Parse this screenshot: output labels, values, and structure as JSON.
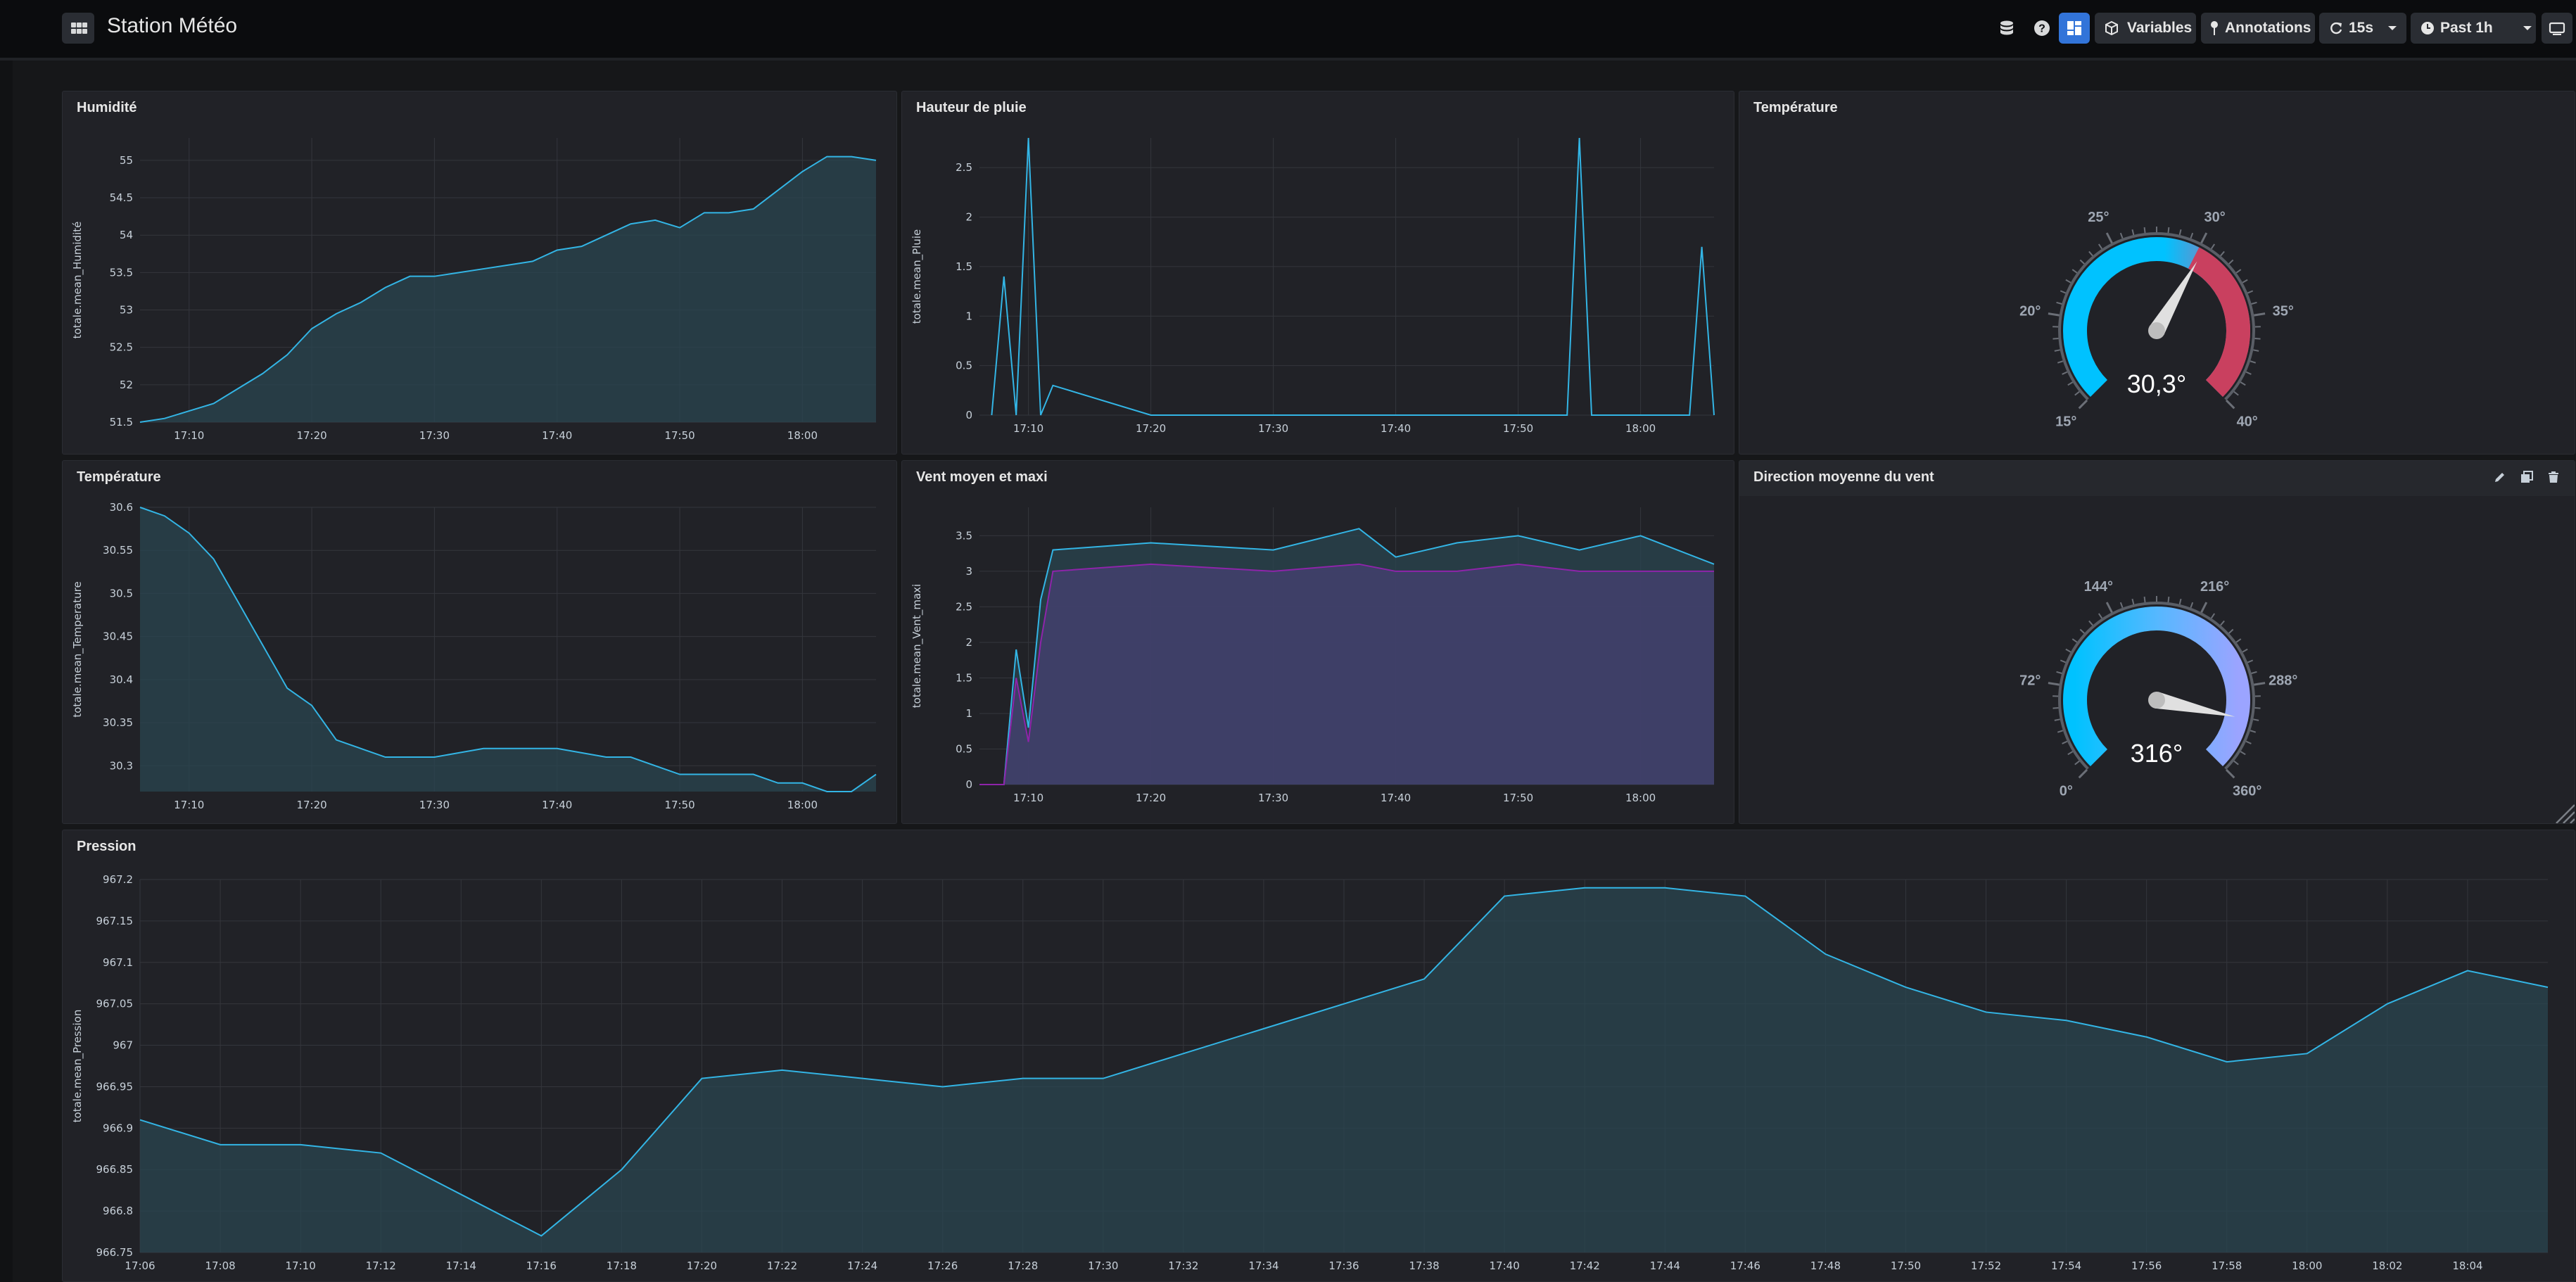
{
  "header": {
    "title": "Station Météo",
    "variables_label": "Variables",
    "annotations_label": "Annotations",
    "refresh_label": "15s",
    "time_range_label": "Past 1h"
  },
  "colors": {
    "background": "#161719",
    "panel": "#212227",
    "line": "#33b5e5",
    "fill": "#2a4550",
    "purple_fill": "#433f6d",
    "purple_line": "#8e24aa",
    "gauge_blue": "#00c2ff",
    "gauge_red": "#c9405f",
    "gauge_lavender": "#9ba4ff",
    "button_active": "#3274d9"
  },
  "icons": {
    "dashboard": "grid-icon",
    "datasource": "database-icon",
    "help": "help-icon",
    "variables": "cube-icon",
    "annotations": "pin-icon",
    "refresh": "refresh-icon",
    "time": "clock-icon",
    "kiosk": "tv-icon"
  },
  "panels": {
    "humidity": {
      "title": "Humidité",
      "ylabel": "totale.mean_Humidité",
      "yticks": [
        "55",
        "54.5",
        "54",
        "53.5",
        "53",
        "52.5",
        "52",
        "51.5"
      ],
      "xticks": [
        "17:10",
        "17:20",
        "17:30",
        "17:40",
        "17:50",
        "18:00"
      ]
    },
    "rain": {
      "title": "Hauteur de pluie",
      "ylabel": "totale.mean_Pluie",
      "yticks": [
        "2.5",
        "2",
        "1.5",
        "1",
        "0.5",
        "0"
      ],
      "xticks": [
        "17:10",
        "17:20",
        "17:30",
        "17:40",
        "17:50",
        "18:00"
      ]
    },
    "temp_gauge": {
      "title": "Température",
      "value": "30,3°",
      "min": 15,
      "max": 40,
      "current": 30.3,
      "threshold": 30,
      "labels": [
        "15°",
        "20°",
        "25°",
        "30°",
        "35°",
        "40°"
      ]
    },
    "temperature": {
      "title": "Température",
      "ylabel": "totale.mean_Temperature",
      "yticks": [
        "30.6",
        "30.55",
        "30.5",
        "30.45",
        "30.4",
        "30.35",
        "30.3"
      ],
      "xticks": [
        "17:10",
        "17:20",
        "17:30",
        "17:40",
        "17:50",
        "18:00"
      ]
    },
    "wind": {
      "title": "Vent moyen et maxi",
      "ylabel": "totale.mean_Vent_maxi",
      "yticks": [
        "3.5",
        "3",
        "2.5",
        "2",
        "1.5",
        "1",
        "0.5",
        "0"
      ],
      "xticks": [
        "17:10",
        "17:20",
        "17:30",
        "17:40",
        "17:50",
        "18:00"
      ]
    },
    "wind_dir": {
      "title": "Direction moyenne du vent",
      "value": "316°",
      "min": 0,
      "max": 360,
      "current": 316,
      "labels": [
        "0°",
        "72°",
        "144°",
        "216°",
        "288°",
        "360°"
      ]
    },
    "pressure": {
      "title": "Pression",
      "ylabel": "totale.mean_Pression",
      "yticks": [
        "967.2",
        "967.15",
        "967.1",
        "967.05",
        "967",
        "966.95",
        "966.9",
        "966.85",
        "966.8",
        "966.75"
      ],
      "xticks": [
        "17:06",
        "17:08",
        "17:10",
        "17:12",
        "17:14",
        "17:16",
        "17:18",
        "17:20",
        "17:22",
        "17:24",
        "17:26",
        "17:28",
        "17:30",
        "17:32",
        "17:34",
        "17:36",
        "17:38",
        "17:40",
        "17:42",
        "17:44",
        "17:46",
        "17:48",
        "17:50",
        "17:52",
        "17:54",
        "17:56",
        "17:58",
        "18:00",
        "18:02",
        "18:04"
      ]
    }
  },
  "chart_data": [
    {
      "type": "area",
      "title": "Humidité",
      "ylabel": "totale.mean_Humidité",
      "ylim": [
        51.5,
        55.3
      ],
      "x": [
        "17:06",
        "17:08",
        "17:10",
        "17:12",
        "17:14",
        "17:16",
        "17:18",
        "17:20",
        "17:22",
        "17:24",
        "17:26",
        "17:28",
        "17:30",
        "17:32",
        "17:34",
        "17:36",
        "17:38",
        "17:40",
        "17:42",
        "17:44",
        "17:46",
        "17:48",
        "17:50",
        "17:52",
        "17:54",
        "17:56",
        "17:58",
        "18:00",
        "18:02",
        "18:04",
        "18:06"
      ],
      "values": [
        51.5,
        51.55,
        51.65,
        51.75,
        51.95,
        52.15,
        52.4,
        52.75,
        52.95,
        53.1,
        53.3,
        53.45,
        53.45,
        53.5,
        53.55,
        53.6,
        53.65,
        53.8,
        53.85,
        54.0,
        54.15,
        54.2,
        54.1,
        54.3,
        54.3,
        54.35,
        54.6,
        54.85,
        55.05,
        55.05,
        55.0
      ],
      "grid": true
    },
    {
      "type": "line",
      "title": "Hauteur de pluie",
      "ylabel": "totale.mean_Pluie",
      "ylim": [
        0,
        2.8
      ],
      "x": [
        "17:07",
        "17:08",
        "17:09",
        "17:10",
        "17:11",
        "17:12",
        "17:20",
        "17:30",
        "17:40",
        "17:50",
        "17:54",
        "17:55",
        "17:56",
        "17:58",
        "18:04",
        "18:05",
        "18:06"
      ],
      "values": [
        0,
        1.4,
        0,
        2.8,
        0,
        0.3,
        0,
        0,
        0,
        0,
        0,
        2.8,
        0,
        0,
        0,
        1.7,
        0
      ],
      "grid": true
    },
    {
      "type": "area",
      "title": "Température",
      "ylabel": "totale.mean_Temperature",
      "ylim": [
        30.27,
        30.6
      ],
      "x": [
        "17:06",
        "17:08",
        "17:10",
        "17:12",
        "17:14",
        "17:16",
        "17:18",
        "17:20",
        "17:22",
        "17:24",
        "17:26",
        "17:28",
        "17:30",
        "17:32",
        "17:34",
        "17:36",
        "17:38",
        "17:40",
        "17:42",
        "17:44",
        "17:46",
        "17:48",
        "17:50",
        "17:52",
        "17:54",
        "17:56",
        "17:58",
        "18:00",
        "18:02",
        "18:04",
        "18:06"
      ],
      "values": [
        30.6,
        30.59,
        30.57,
        30.54,
        30.49,
        30.44,
        30.39,
        30.37,
        30.33,
        30.32,
        30.31,
        30.31,
        30.31,
        30.315,
        30.32,
        30.32,
        30.32,
        30.32,
        30.315,
        30.31,
        30.31,
        30.3,
        30.29,
        30.29,
        30.29,
        30.29,
        30.28,
        30.28,
        30.27,
        30.27,
        30.29
      ],
      "grid": true
    },
    {
      "type": "area",
      "title": "Vent moyen et maxi",
      "ylabel": "totale.mean_Vent_maxi",
      "ylim": [
        0,
        3.9
      ],
      "x": [
        "17:06",
        "17:08",
        "17:09",
        "17:10",
        "17:11",
        "17:12",
        "17:20",
        "17:30",
        "17:37",
        "17:40",
        "17:45",
        "17:50",
        "17:55",
        "18:00",
        "18:06"
      ],
      "series": [
        {
          "values": [
            0,
            0,
            1.9,
            0.8,
            2.6,
            3.3,
            3.4,
            3.3,
            3.6,
            3.2,
            3.4,
            3.5,
            3.3,
            3.5,
            3.1
          ]
        },
        {
          "values": [
            0,
            0,
            1.5,
            0.6,
            2.0,
            3.0,
            3.1,
            3.0,
            3.1,
            3.0,
            3.0,
            3.1,
            3.0,
            3.0,
            3.0
          ]
        }
      ],
      "grid": true
    },
    {
      "type": "area",
      "title": "Pression",
      "ylabel": "totale.mean_Pression",
      "ylim": [
        966.75,
        967.2
      ],
      "x": [
        "17:06",
        "17:08",
        "17:10",
        "17:12",
        "17:14",
        "17:16",
        "17:18",
        "17:20",
        "17:22",
        "17:24",
        "17:26",
        "17:28",
        "17:30",
        "17:32",
        "17:34",
        "17:36",
        "17:38",
        "17:40",
        "17:42",
        "17:44",
        "17:46",
        "17:48",
        "17:50",
        "17:52",
        "17:54",
        "17:56",
        "17:58",
        "18:00",
        "18:02",
        "18:04",
        "18:06"
      ],
      "values": [
        966.91,
        966.88,
        966.88,
        966.87,
        966.82,
        966.77,
        966.85,
        966.96,
        966.97,
        966.96,
        966.95,
        966.96,
        966.96,
        966.99,
        967.02,
        967.05,
        967.08,
        967.18,
        967.19,
        967.19,
        967.18,
        967.11,
        967.07,
        967.04,
        967.03,
        967.01,
        966.98,
        966.99,
        967.05,
        967.09,
        967.07
      ],
      "grid": true
    }
  ]
}
